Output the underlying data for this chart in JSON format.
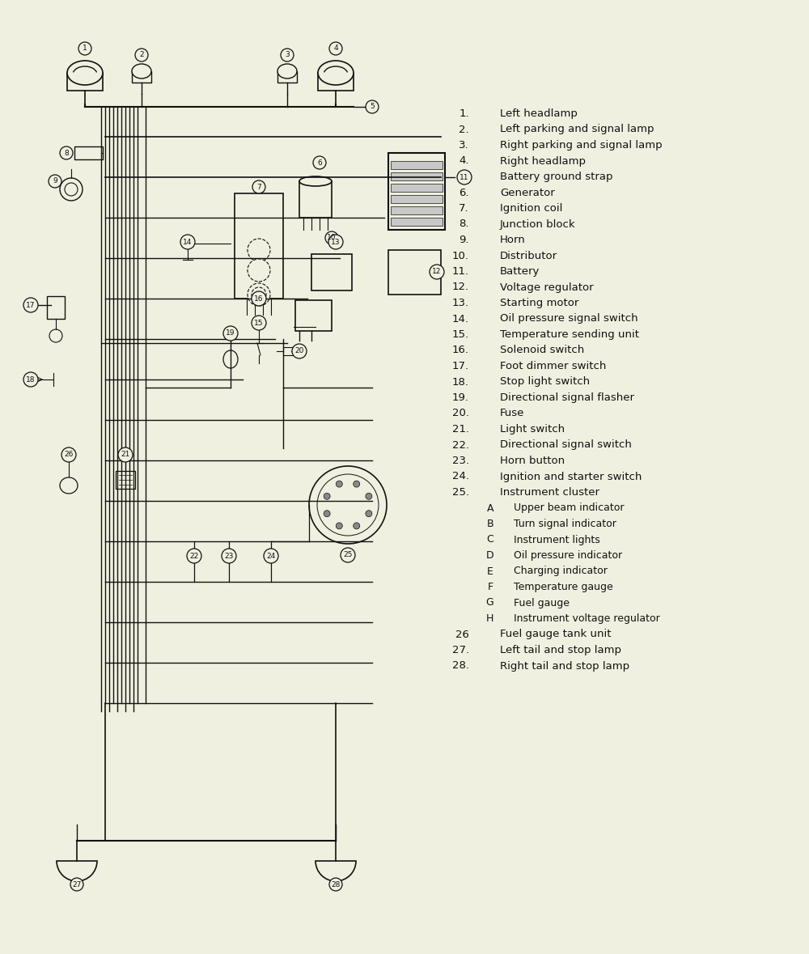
{
  "bg_color": "#f0f0e0",
  "line_color": "#111111",
  "legend_items_main": [
    [
      "1.",
      "Left headlamp"
    ],
    [
      "2.",
      "Left parking and signal lamp"
    ],
    [
      "3.",
      "Right parking and signal lamp"
    ],
    [
      "4.",
      "Right headlamp"
    ],
    [
      "5.",
      "Battery ground strap"
    ],
    [
      "6.",
      "Generator"
    ],
    [
      "7.",
      "Ignition coil"
    ],
    [
      "8.",
      "Junction block"
    ],
    [
      "9.",
      "Horn"
    ],
    [
      "10.",
      "Distributor"
    ],
    [
      "11.",
      "Battery"
    ],
    [
      "12.",
      "Voltage regulator"
    ],
    [
      "13.",
      "Starting motor"
    ],
    [
      "14.",
      "Oil pressure signal switch"
    ],
    [
      "15.",
      "Temperature sending unit"
    ],
    [
      "16.",
      "Solenoid switch"
    ],
    [
      "17.",
      "Foot dimmer switch"
    ],
    [
      "18.",
      "Stop light switch"
    ],
    [
      "19.",
      "Directional signal flasher"
    ],
    [
      "20.",
      "Fuse"
    ],
    [
      "21.",
      "Light switch"
    ],
    [
      "22.",
      "Directional signal switch"
    ],
    [
      "23.",
      "Horn button"
    ],
    [
      "24.",
      "Ignition and starter switch"
    ],
    [
      "25.",
      "Instrument cluster"
    ]
  ],
  "legend_sub": [
    [
      "A",
      "Upper beam indicator"
    ],
    [
      "B",
      "Turn signal indicator"
    ],
    [
      "C",
      "Instrument lights"
    ],
    [
      "D",
      "Oil pressure indicator"
    ],
    [
      "E",
      "Charging indicator"
    ],
    [
      "F",
      "Temperature gauge"
    ],
    [
      "G",
      "Fuel gauge"
    ],
    [
      "H",
      "Instrument voltage regulator"
    ]
  ],
  "legend_items_end": [
    [
      "26",
      "Fuel gauge tank unit"
    ],
    [
      "27.",
      "Left tail and stop lamp"
    ],
    [
      "28.",
      "Right tail and stop lamp"
    ]
  ]
}
